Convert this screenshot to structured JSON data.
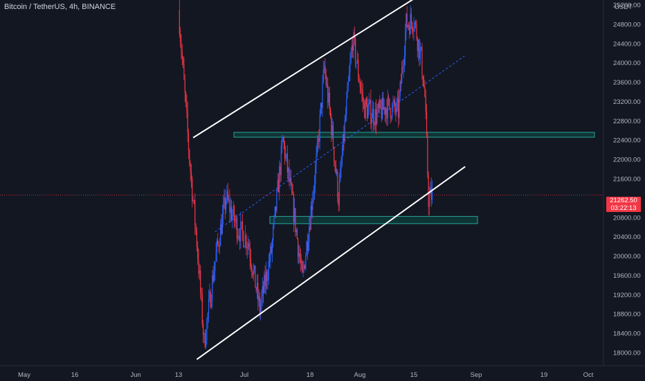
{
  "header": {
    "symbol_title": "Bitcoin / TetherUS, 4h, BINANCE",
    "currency": "USDT"
  },
  "price_axis": {
    "labels": [
      "25200.00",
      "24800.00",
      "24400.00",
      "24000.00",
      "23600.00",
      "23200.00",
      "22800.00",
      "22400.00",
      "22000.00",
      "21600.00",
      "20800.00",
      "20400.00",
      "20000.00",
      "19600.00",
      "19200.00",
      "18800.00",
      "18400.00",
      "18000.00"
    ]
  },
  "time_axis": {
    "labels": [
      "May",
      "16",
      "Jun",
      "13",
      "Jul",
      "18",
      "Aug",
      "15",
      "Sep",
      "19",
      "Oct"
    ]
  },
  "last_price": {
    "price": "21262.50",
    "countdown": "03:22:13"
  },
  "colors": {
    "background": "#131722",
    "up_candle": "#2962ff",
    "down_candle": "#f23645",
    "zone_fill": "#0f3a3a",
    "zone_border": "#26a69a",
    "trendline": "#ffffff",
    "midline": "#2962ff"
  },
  "chart_data": {
    "type": "candlestick",
    "symbol": "Bitcoin / TetherUS",
    "interval": "4h",
    "exchange": "BINANCE",
    "y_axis_unit": "USDT",
    "ylim": [
      17800,
      25400
    ],
    "series": [
      {
        "name": "price",
        "x": [
          "Jun 13",
          "Jun 16",
          "Jun 18",
          "Jun 20",
          "Jun 23",
          "Jun 26",
          "Jun 29",
          "Jul 2",
          "Jul 5",
          "Jul 8",
          "Jul 11",
          "Jul 14",
          "Jul 16",
          "Jul 18",
          "Jul 20",
          "Jul 22",
          "Jul 24",
          "Jul 26",
          "Jul 28",
          "Jul 30",
          "Aug 2",
          "Aug 5",
          "Aug 8",
          "Aug 11",
          "Aug 13",
          "Aug 15",
          "Aug 17",
          "Aug 18",
          "Aug 19",
          "Aug 20"
        ],
        "values": [
          25100,
          22000,
          20300,
          18200,
          19900,
          21200,
          20600,
          20300,
          18900,
          20100,
          22400,
          20800,
          19500,
          20800,
          22100,
          23900,
          22700,
          21200,
          22900,
          24500,
          23100,
          22900,
          23100,
          23000,
          24800,
          24900,
          24100,
          23300,
          21200,
          21262.5
        ]
      }
    ],
    "annotations": [
      {
        "type": "support_resistance_zone",
        "low": 22460,
        "high": 22560
      },
      {
        "type": "support_resistance_zone",
        "low": 20670,
        "high": 20820
      },
      {
        "type": "channel_upper_line",
        "from": {
          "x": "Jun 17",
          "y": 22450
        },
        "to": {
          "x": "Aug 17",
          "y": 25420
        }
      },
      {
        "type": "channel_lower_line",
        "from": {
          "x": "Jun 18",
          "y": 17860
        },
        "to": {
          "x": "Aug 29",
          "y": 21850
        }
      },
      {
        "type": "channel_midline_dashed",
        "from": {
          "x": "Jun 23",
          "y": 20500
        },
        "to": {
          "x": "Aug 29",
          "y": 24150
        }
      }
    ],
    "last_price_line": 21262.5
  }
}
